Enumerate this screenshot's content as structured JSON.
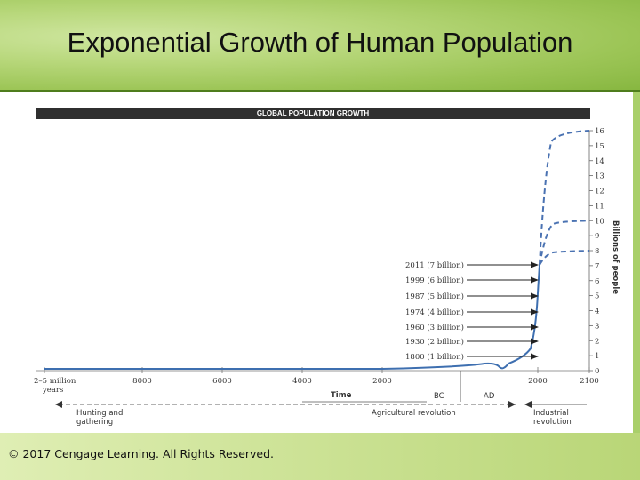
{
  "slide": {
    "title": "Exponential Growth of Human Population",
    "copyright": "© 2017 Cengage Learning. All Rights Reserved."
  },
  "colors": {
    "line": "#3e6fb0",
    "dashed": "#4a72b2",
    "header": "#9cc556"
  },
  "chart_data": {
    "type": "line",
    "title": "GLOBAL POPULATION GROWTH",
    "xlabel": "Time",
    "ylabel": "Billions of people",
    "ylim": [
      0,
      16
    ],
    "yticks": [
      "0",
      "1",
      "2",
      "3",
      "4",
      "5",
      "6",
      "7",
      "8",
      "9",
      "10",
      "11",
      "12",
      "13",
      "14",
      "15",
      "16"
    ],
    "xticks": [
      "2–5 million years",
      "8000",
      "6000",
      "4000",
      "2000",
      "2000",
      "2100"
    ],
    "era_labels": [
      "BC",
      "AD"
    ],
    "projections": {
      "high": 16,
      "medium": 10,
      "low": 8
    },
    "annotations": [
      {
        "label": "2011 (7 billion)",
        "value": 7
      },
      {
        "label": "1999 (6 billion)",
        "value": 6
      },
      {
        "label": "1987 (5 billion)",
        "value": 5
      },
      {
        "label": "1974 (4 billion)",
        "value": 4
      },
      {
        "label": "1960 (3 billion)",
        "value": 3
      },
      {
        "label": "1930 (2 billion)",
        "value": 2
      },
      {
        "label": "1800 (1 billion)",
        "value": 1
      }
    ],
    "periods": [
      {
        "label": "Hunting and gathering"
      },
      {
        "label": "Agricultural revolution"
      },
      {
        "label": "Industrial revolution"
      }
    ]
  }
}
